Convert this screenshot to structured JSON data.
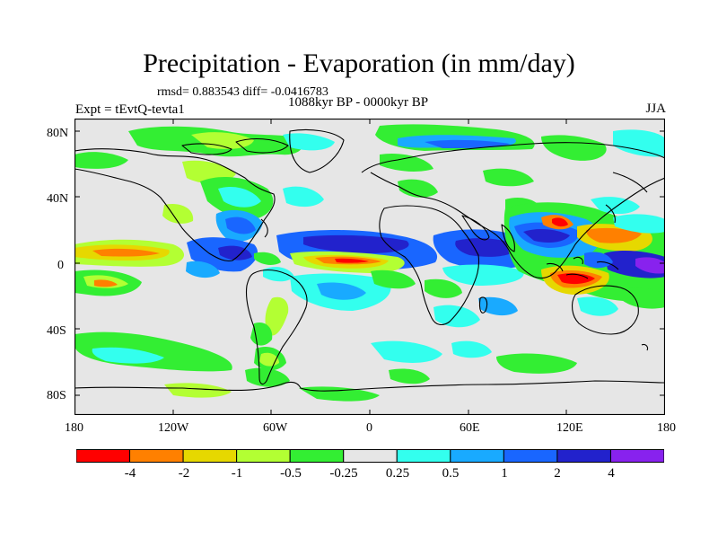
{
  "title": "Precipitation - Evaporation (in mm/day)",
  "stats": "rmsd= 0.883543 diff= -0.0416783",
  "experiment": "Expt = tEvtQ-tevta1",
  "period": "1088kyr BP - 0000kyr BP",
  "season": "JJA",
  "lat_labels": [
    "80N",
    "40N",
    "0",
    "40S",
    "80S"
  ],
  "lon_labels": [
    "180",
    "120W",
    "60W",
    "0",
    "60E",
    "120E",
    "180"
  ],
  "colorbar": {
    "colors": [
      "#ff0000",
      "#ff8000",
      "#e6d800",
      "#b3ff33",
      "#33ee33",
      "#e6e6e6",
      "#33ffee",
      "#19aaff",
      "#1966ff",
      "#2222cc",
      "#8822ee"
    ],
    "labels": [
      "-4",
      "-2",
      "-1",
      "-0.5",
      "-0.25",
      "0.25",
      "0.5",
      "1",
      "2",
      "4"
    ]
  },
  "background_color": "#e6e6e6"
}
